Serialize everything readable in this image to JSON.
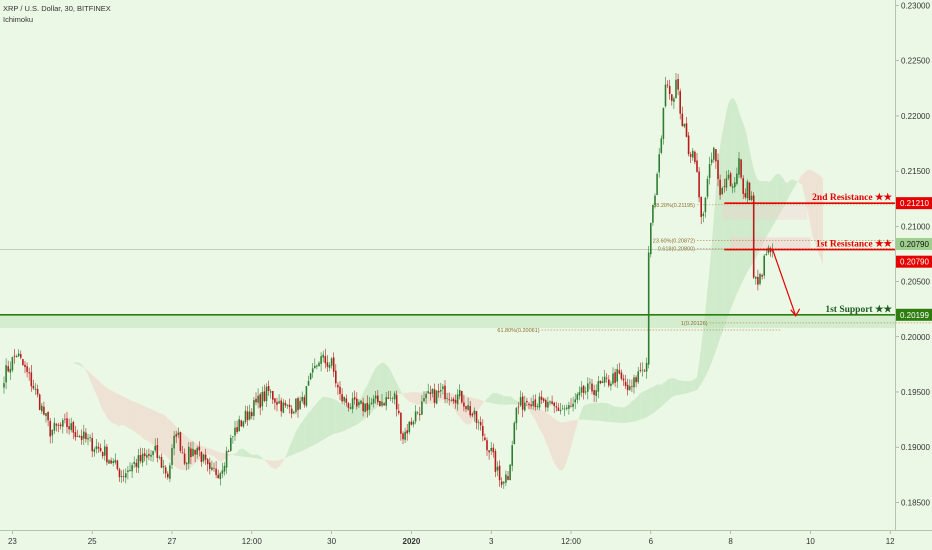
{
  "header": {
    "symbol_line": "XRP / U.S. Dollar, 30, BITFINEX",
    "indicator": "Ichimoku"
  },
  "colors": {
    "background": "#ecf8e6",
    "up_candle": "#2e7d32",
    "down_candle": "#b71c1c",
    "resistance": "#e60000",
    "support": "#2e7d0f",
    "fib": "#b5985a",
    "cloud_green": "#b8e0b4",
    "cloud_red": "#f0cfc4",
    "arrow": "#e60000"
  },
  "chart_data": {
    "type": "candlestick",
    "ylim": [
      0.1825,
      0.2305
    ],
    "yticks": [
      "0.23000",
      "0.22500",
      "0.22000",
      "0.21500",
      "0.21000",
      "0.20500",
      "0.20000",
      "0.19500",
      "0.19000",
      "0.18500"
    ],
    "ytick_values": [
      0.23,
      0.225,
      0.22,
      0.215,
      0.21,
      0.205,
      0.2,
      0.195,
      0.19,
      0.185
    ],
    "xticks": [
      "23",
      "25",
      "27",
      "12:00",
      "30",
      "2020",
      "3",
      "12:00",
      "6",
      "8",
      "10",
      "12"
    ],
    "xtick_index": [
      4,
      42,
      80,
      118,
      156,
      194,
      232,
      270,
      308,
      346,
      384,
      422
    ],
    "bar_count": 426,
    "key_points": [
      [
        0,
        0.1965
      ],
      [
        6,
        0.1985
      ],
      [
        14,
        0.1955
      ],
      [
        22,
        0.1915
      ],
      [
        30,
        0.192
      ],
      [
        40,
        0.1905
      ],
      [
        48,
        0.1895
      ],
      [
        56,
        0.1875
      ],
      [
        62,
        0.1885
      ],
      [
        72,
        0.1895
      ],
      [
        78,
        0.1875
      ],
      [
        82,
        0.1915
      ],
      [
        86,
        0.189
      ],
      [
        92,
        0.19
      ],
      [
        98,
        0.1875
      ],
      [
        103,
        0.188
      ],
      [
        110,
        0.1915
      ],
      [
        118,
        0.1935
      ],
      [
        126,
        0.195
      ],
      [
        134,
        0.1935
      ],
      [
        142,
        0.194
      ],
      [
        150,
        0.198
      ],
      [
        156,
        0.1975
      ],
      [
        160,
        0.1945
      ],
      [
        168,
        0.1935
      ],
      [
        176,
        0.194
      ],
      [
        186,
        0.1945
      ],
      [
        190,
        0.191
      ],
      [
        196,
        0.193
      ],
      [
        202,
        0.1945
      ],
      [
        210,
        0.195
      ],
      [
        218,
        0.1945
      ],
      [
        226,
        0.192
      ],
      [
        232,
        0.1895
      ],
      [
        236,
        0.187
      ],
      [
        240,
        0.1875
      ],
      [
        244,
        0.1935
      ],
      [
        250,
        0.1945
      ],
      [
        260,
        0.1935
      ],
      [
        270,
        0.1935
      ],
      [
        276,
        0.195
      ],
      [
        284,
        0.1955
      ],
      [
        292,
        0.1965
      ],
      [
        298,
        0.195
      ],
      [
        303,
        0.197
      ],
      [
        306,
        0.1975
      ],
      [
        307,
        0.208
      ],
      [
        309,
        0.2115
      ],
      [
        312,
        0.216
      ],
      [
        314,
        0.221
      ],
      [
        316,
        0.2235
      ],
      [
        318,
        0.2215
      ],
      [
        320,
        0.223
      ],
      [
        323,
        0.2195
      ],
      [
        326,
        0.217
      ],
      [
        329,
        0.2165
      ],
      [
        332,
        0.2105
      ],
      [
        335,
        0.214
      ],
      [
        338,
        0.217
      ],
      [
        341,
        0.2125
      ],
      [
        344,
        0.215
      ],
      [
        347,
        0.2135
      ],
      [
        350,
        0.216
      ],
      [
        352,
        0.2125
      ],
      [
        354,
        0.2135
      ],
      [
        356,
        0.2125
      ],
      [
        357,
        0.2055
      ],
      [
        359,
        0.2045
      ],
      [
        361,
        0.206
      ],
      [
        363,
        0.2075
      ],
      [
        366,
        0.2079
      ]
    ],
    "resistance_levels": [
      {
        "label": "2nd Resistance ★★",
        "value": 0.2121,
        "tag": "0.21210"
      },
      {
        "label": "1st Resistance ★★",
        "value": 0.2079,
        "tag": "0.20790"
      }
    ],
    "support_levels": [
      {
        "label": "1st Support ★★",
        "value": 0.20199,
        "tag": "0.20199"
      }
    ],
    "last_price": {
      "value": 0.2079,
      "tag": "0.20790"
    },
    "fib_labels": [
      {
        "text": "38.20%(0.21195)",
        "value": 0.21195,
        "x_from_bar": 330
      },
      {
        "text": "23.60%(0.20872)",
        "value": 0.20872,
        "x_from_bar": 330
      },
      {
        "text": "0.618(0.20800)",
        "value": 0.208,
        "x_from_bar": 330
      },
      {
        "text": "1(0.20126)",
        "value": 0.20126,
        "x_from_bar": 336
      },
      {
        "text": "61.80%(0.20061)",
        "value": 0.20061,
        "x_from_bar": 256
      }
    ],
    "projection_arrow": {
      "from": [
        366,
        0.2079
      ],
      "to": [
        377,
        0.2019
      ]
    }
  }
}
